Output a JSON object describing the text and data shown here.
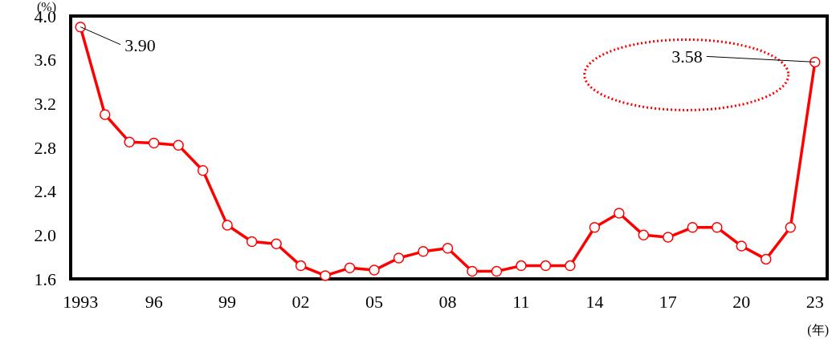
{
  "chart_data": {
    "type": "line",
    "ylabel": "(%)",
    "xlabel": "(年)",
    "x": [
      1993,
      1994,
      1995,
      1996,
      1997,
      1998,
      1999,
      2000,
      2001,
      2002,
      2003,
      2004,
      2005,
      2006,
      2007,
      2008,
      2009,
      2010,
      2011,
      2012,
      2013,
      2014,
      2015,
      2016,
      2017,
      2018,
      2019,
      2020,
      2021,
      2022,
      2023
    ],
    "series": [
      {
        "color": "#ff0000",
        "values": [
          3.9,
          3.1,
          2.85,
          2.84,
          2.82,
          2.59,
          2.09,
          1.94,
          1.92,
          1.72,
          1.63,
          1.7,
          1.68,
          1.79,
          1.85,
          1.88,
          1.67,
          1.67,
          1.72,
          1.72,
          1.72,
          2.07,
          2.2,
          2.0,
          1.98,
          2.07,
          2.07,
          1.9,
          1.78,
          2.07,
          3.58
        ]
      }
    ],
    "xlim": [
      1992.6,
      2023.5
    ],
    "ylim": [
      1.6,
      4.0
    ],
    "xticks": [
      {
        "value": 1993,
        "label": "1993"
      },
      {
        "value": 1996,
        "label": "96"
      },
      {
        "value": 1999,
        "label": "99"
      },
      {
        "value": 2002,
        "label": "02"
      },
      {
        "value": 2005,
        "label": "05"
      },
      {
        "value": 2008,
        "label": "08"
      },
      {
        "value": 2011,
        "label": "11"
      },
      {
        "value": 2014,
        "label": "14"
      },
      {
        "value": 2017,
        "label": "17"
      },
      {
        "value": 2020,
        "label": "20"
      },
      {
        "value": 2023,
        "label": "23"
      }
    ],
    "yticks": [
      {
        "value": 1.6,
        "label": "1.6"
      },
      {
        "value": 2.0,
        "label": "2.0"
      },
      {
        "value": 2.4,
        "label": "2.4"
      },
      {
        "value": 2.8,
        "label": "2.8"
      },
      {
        "value": 3.2,
        "label": "3.2"
      },
      {
        "value": 3.6,
        "label": "3.6"
      },
      {
        "value": 4.0,
        "label": "4.0"
      }
    ],
    "marker": "circle",
    "grid": false,
    "annotations": [
      {
        "text": "3.90",
        "x": 1993,
        "y": 3.9
      },
      {
        "text": "3.58",
        "x": 2023,
        "y": 3.58
      }
    ]
  }
}
